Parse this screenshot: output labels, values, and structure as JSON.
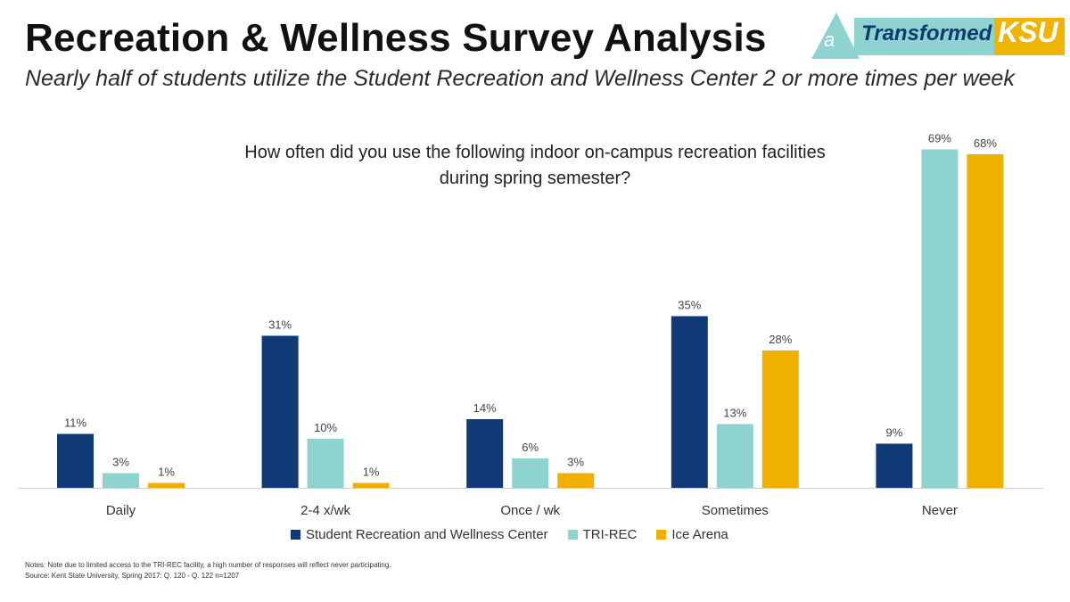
{
  "header": {
    "title": "Recreation & Wellness Survey Analysis",
    "subtitle": "Nearly half of students utilize the Student Recreation and Wellness Center 2 or more times per week"
  },
  "logo": {
    "mark_letter": "a",
    "text": "Transformed",
    "ksu": "KSU"
  },
  "chart_data": {
    "type": "bar",
    "title_line1": "How often did you use the following indoor on-campus recreation facilities",
    "title_line2": "during spring semester?",
    "categories": [
      "Daily",
      "2-4 x/wk",
      "Once / wk",
      "Sometimes",
      "Never"
    ],
    "series": [
      {
        "name": "Student Recreation and Wellness Center",
        "color": "#0f3a75",
        "values": [
          11,
          31,
          14,
          35,
          9
        ],
        "labels": [
          "11%",
          "31%",
          "14%",
          "35%",
          "9%"
        ]
      },
      {
        "name": "TRI-REC",
        "color": "#8fd3d1",
        "values": [
          3,
          10,
          6,
          13,
          69
        ],
        "labels": [
          "3%",
          "10%",
          "6%",
          "13%",
          "69%"
        ]
      },
      {
        "name": "Ice Arena",
        "color": "#f0b000",
        "values": [
          1,
          1,
          3,
          28,
          68
        ],
        "labels": [
          "1%",
          "1%",
          "3%",
          "28%",
          "68%"
        ]
      }
    ],
    "ylim": [
      0,
      70
    ],
    "legend_position": "bottom",
    "grid": false
  },
  "notes": {
    "line1": "Notes: Note due to limited access to the TRI-REC facility, a high number of responses will reflect never participating.",
    "line2": "Source: Kent State University, Spring 2017: Q. 120 - Q. 122 n=1207"
  }
}
